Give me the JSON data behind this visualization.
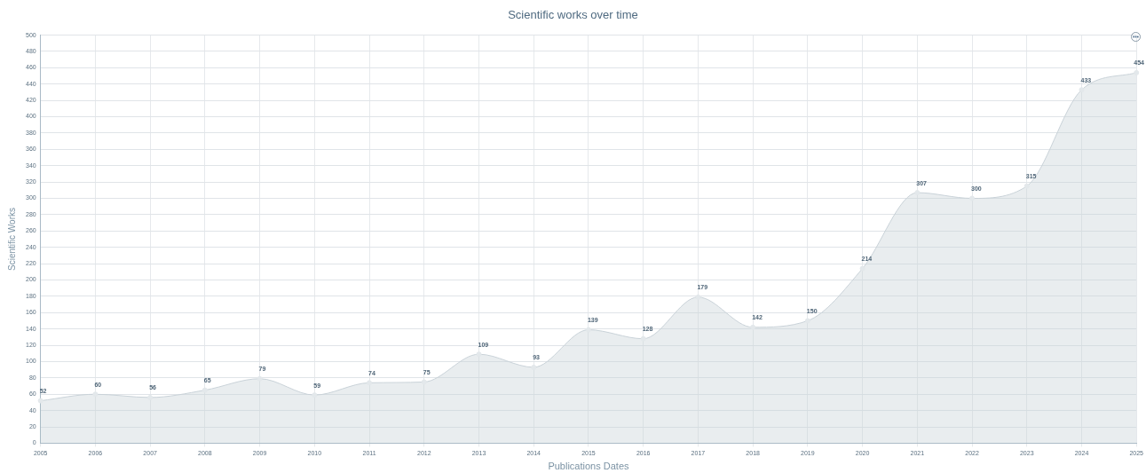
{
  "chart_data": {
    "type": "area",
    "title": "Scientific works over time",
    "xlabel": "Publications Dates",
    "ylabel": "Scientific Works",
    "categories": [
      "2005",
      "2006",
      "2007",
      "2008",
      "2009",
      "2010",
      "2011",
      "2012",
      "2013",
      "2014",
      "2015",
      "2016",
      "2017",
      "2018",
      "2019",
      "2020",
      "2021",
      "2022",
      "2023",
      "2024",
      "2025"
    ],
    "series": [
      {
        "color": "#c9d2d8",
        "values": [
          52,
          60,
          56,
          65,
          79,
          59,
          74,
          75,
          109,
          93,
          139,
          128,
          179,
          142,
          150,
          214,
          307,
          300,
          315,
          433,
          454
        ]
      }
    ],
    "ylim": [
      0,
      500
    ],
    "yticks": [
      0,
      20,
      40,
      60,
      80,
      100,
      120,
      140,
      160,
      180,
      200,
      220,
      240,
      260,
      280,
      300,
      320,
      340,
      360,
      380,
      400,
      420,
      440,
      460,
      480,
      500
    ],
    "grid": true,
    "data_labels": true,
    "legend": false,
    "marker": "circle"
  }
}
